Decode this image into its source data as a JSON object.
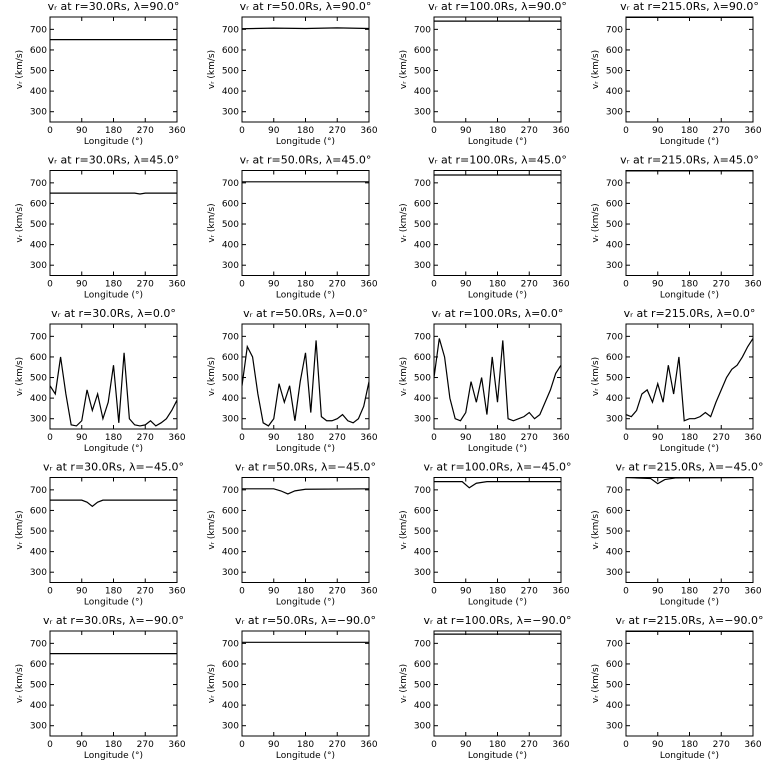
{
  "chart_data": [
    {
      "type": "line",
      "title": "vᵣ at r=30.0Rs, λ=90.0°",
      "xlabel": "Longitude (°)",
      "ylabel": "vᵣ (km/s)",
      "x": [
        0,
        360
      ],
      "values": [
        650,
        650
      ],
      "xlim": [
        0,
        360
      ],
      "ylim": [
        250,
        760
      ],
      "xticks": [
        0,
        90,
        180,
        270,
        360
      ],
      "yticks": [
        300,
        400,
        500,
        600,
        700
      ],
      "color": "#000000"
    },
    {
      "type": "line",
      "title": "vᵣ at r=50.0Rs, λ=90.0°",
      "xlabel": "Longitude (°)",
      "ylabel": "vᵣ (km/s)",
      "x": [
        0,
        90,
        180,
        270,
        360
      ],
      "values": [
        703,
        706,
        704,
        707,
        704
      ],
      "xlim": [
        0,
        360
      ],
      "ylim": [
        250,
        760
      ],
      "xticks": [
        0,
        90,
        180,
        270,
        360
      ],
      "yticks": [
        300,
        400,
        500,
        600,
        700
      ],
      "color": "#000000"
    },
    {
      "type": "line",
      "title": "vᵣ at r=100.0Rs, λ=90.0°",
      "xlabel": "Longitude (°)",
      "ylabel": "vᵣ (km/s)",
      "x": [
        0,
        360
      ],
      "values": [
        740,
        740
      ],
      "xlim": [
        0,
        360
      ],
      "ylim": [
        250,
        760
      ],
      "xticks": [
        0,
        90,
        180,
        270,
        360
      ],
      "yticks": [
        300,
        400,
        500,
        600,
        700
      ],
      "color": "#000000"
    },
    {
      "type": "line",
      "title": "vᵣ at r=215.0Rs, λ=90.0°",
      "xlabel": "Longitude (°)",
      "ylabel": "vᵣ (km/s)",
      "x": [
        0,
        360
      ],
      "values": [
        758,
        758
      ],
      "xlim": [
        0,
        360
      ],
      "ylim": [
        250,
        760
      ],
      "xticks": [
        0,
        90,
        180,
        270,
        360
      ],
      "yticks": [
        300,
        400,
        500,
        600,
        700
      ],
      "color": "#000000"
    },
    {
      "type": "line",
      "title": "vᵣ at r=30.0Rs, λ=45.0°",
      "xlabel": "Longitude (°)",
      "ylabel": "vᵣ (km/s)",
      "x": [
        0,
        240,
        255,
        270,
        360
      ],
      "values": [
        650,
        650,
        646,
        650,
        650
      ],
      "xlim": [
        0,
        360
      ],
      "ylim": [
        250,
        760
      ],
      "xticks": [
        0,
        90,
        180,
        270,
        360
      ],
      "yticks": [
        300,
        400,
        500,
        600,
        700
      ],
      "color": "#000000"
    },
    {
      "type": "line",
      "title": "vᵣ at r=50.0Rs, λ=45.0°",
      "xlabel": "Longitude (°)",
      "ylabel": "vᵣ (km/s)",
      "x": [
        0,
        360
      ],
      "values": [
        705,
        705
      ],
      "xlim": [
        0,
        360
      ],
      "ylim": [
        250,
        760
      ],
      "xticks": [
        0,
        90,
        180,
        270,
        360
      ],
      "yticks": [
        300,
        400,
        500,
        600,
        700
      ],
      "color": "#000000"
    },
    {
      "type": "line",
      "title": "vᵣ at r=100.0Rs, λ=45.0°",
      "xlabel": "Longitude (°)",
      "ylabel": "vᵣ (km/s)",
      "x": [
        0,
        360
      ],
      "values": [
        738,
        738
      ],
      "xlim": [
        0,
        360
      ],
      "ylim": [
        250,
        760
      ],
      "xticks": [
        0,
        90,
        180,
        270,
        360
      ],
      "yticks": [
        300,
        400,
        500,
        600,
        700
      ],
      "color": "#000000"
    },
    {
      "type": "line",
      "title": "vᵣ at r=215.0Rs, λ=45.0°",
      "xlabel": "Longitude (°)",
      "ylabel": "vᵣ (km/s)",
      "x": [
        0,
        360
      ],
      "values": [
        758,
        758
      ],
      "xlim": [
        0,
        360
      ],
      "ylim": [
        250,
        760
      ],
      "xticks": [
        0,
        90,
        180,
        270,
        360
      ],
      "yticks": [
        300,
        400,
        500,
        600,
        700
      ],
      "color": "#000000"
    },
    {
      "type": "line",
      "title": "vᵣ at r=30.0Rs, λ=0.0°",
      "xlabel": "Longitude (°)",
      "ylabel": "vᵣ (km/s)",
      "x": [
        0,
        15,
        30,
        45,
        60,
        75,
        90,
        105,
        120,
        135,
        150,
        165,
        180,
        195,
        210,
        225,
        240,
        255,
        270,
        285,
        300,
        315,
        330,
        345,
        360
      ],
      "values": [
        460,
        420,
        600,
        420,
        270,
        265,
        290,
        440,
        340,
        420,
        300,
        380,
        560,
        280,
        620,
        300,
        270,
        265,
        270,
        290,
        265,
        280,
        300,
        340,
        390
      ],
      "xlim": [
        0,
        360
      ],
      "ylim": [
        250,
        760
      ],
      "xticks": [
        0,
        90,
        180,
        270,
        360
      ],
      "yticks": [
        300,
        400,
        500,
        600,
        700
      ],
      "color": "#000000"
    },
    {
      "type": "line",
      "title": "vᵣ at r=50.0Rs, λ=0.0°",
      "xlabel": "Longitude (°)",
      "ylabel": "vᵣ (km/s)",
      "x": [
        0,
        15,
        30,
        45,
        60,
        75,
        90,
        105,
        120,
        135,
        150,
        165,
        180,
        195,
        210,
        225,
        240,
        255,
        270,
        285,
        300,
        315,
        330,
        345,
        360
      ],
      "values": [
        460,
        650,
        600,
        420,
        280,
        265,
        300,
        470,
        380,
        460,
        290,
        480,
        620,
        330,
        680,
        310,
        290,
        290,
        300,
        320,
        290,
        280,
        300,
        360,
        480
      ],
      "xlim": [
        0,
        360
      ],
      "ylim": [
        250,
        760
      ],
      "xticks": [
        0,
        90,
        180,
        270,
        360
      ],
      "yticks": [
        300,
        400,
        500,
        600,
        700
      ],
      "color": "#000000"
    },
    {
      "type": "line",
      "title": "vᵣ at r=100.0Rs, λ=0.0°",
      "xlabel": "Longitude (°)",
      "ylabel": "vᵣ (km/s)",
      "x": [
        0,
        15,
        30,
        45,
        60,
        75,
        90,
        105,
        120,
        135,
        150,
        165,
        180,
        195,
        210,
        225,
        240,
        255,
        270,
        285,
        300,
        315,
        330,
        345,
        360
      ],
      "values": [
        500,
        690,
        600,
        400,
        300,
        290,
        330,
        480,
        380,
        500,
        320,
        600,
        380,
        680,
        300,
        290,
        300,
        310,
        330,
        300,
        320,
        380,
        440,
        520,
        560
      ],
      "xlim": [
        0,
        360
      ],
      "ylim": [
        250,
        760
      ],
      "xticks": [
        0,
        90,
        180,
        270,
        360
      ],
      "yticks": [
        300,
        400,
        500,
        600,
        700
      ],
      "color": "#000000"
    },
    {
      "type": "line",
      "title": "vᵣ at r=215.0Rs, λ=0.0°",
      "xlabel": "Longitude (°)",
      "ylabel": "vᵣ (km/s)",
      "x": [
        0,
        15,
        30,
        45,
        60,
        75,
        90,
        105,
        120,
        135,
        150,
        165,
        180,
        195,
        210,
        225,
        240,
        255,
        270,
        285,
        300,
        315,
        330,
        345,
        360
      ],
      "values": [
        320,
        310,
        340,
        420,
        440,
        380,
        470,
        380,
        560,
        420,
        600,
        290,
        300,
        300,
        310,
        330,
        310,
        380,
        440,
        500,
        540,
        560,
        600,
        650,
        690
      ],
      "xlim": [
        0,
        360
      ],
      "ylim": [
        250,
        760
      ],
      "xticks": [
        0,
        90,
        180,
        270,
        360
      ],
      "yticks": [
        300,
        400,
        500,
        600,
        700
      ],
      "color": "#000000"
    },
    {
      "type": "line",
      "title": "vᵣ at r=30.0Rs, λ=−45.0°",
      "xlabel": "Longitude (°)",
      "ylabel": "vᵣ (km/s)",
      "x": [
        0,
        90,
        105,
        120,
        135,
        150,
        360
      ],
      "values": [
        650,
        650,
        640,
        620,
        640,
        650,
        650
      ],
      "xlim": [
        0,
        360
      ],
      "ylim": [
        250,
        760
      ],
      "xticks": [
        0,
        90,
        180,
        270,
        360
      ],
      "yticks": [
        300,
        400,
        500,
        600,
        700
      ],
      "color": "#000000"
    },
    {
      "type": "line",
      "title": "vᵣ at r=50.0Rs, λ=−45.0°",
      "xlabel": "Longitude (°)",
      "ylabel": "vᵣ (km/s)",
      "x": [
        0,
        90,
        110,
        130,
        150,
        180,
        360
      ],
      "values": [
        705,
        705,
        695,
        680,
        695,
        703,
        705
      ],
      "xlim": [
        0,
        360
      ],
      "ylim": [
        250,
        760
      ],
      "xticks": [
        0,
        90,
        180,
        270,
        360
      ],
      "yticks": [
        300,
        400,
        500,
        600,
        700
      ],
      "color": "#000000"
    },
    {
      "type": "line",
      "title": "vᵣ at r=100.0Rs, λ=−45.0°",
      "xlabel": "Longitude (°)",
      "ylabel": "vᵣ (km/s)",
      "x": [
        0,
        80,
        100,
        120,
        150,
        360
      ],
      "values": [
        740,
        740,
        710,
        732,
        740,
        740
      ],
      "xlim": [
        0,
        360
      ],
      "ylim": [
        250,
        760
      ],
      "xticks": [
        0,
        90,
        180,
        270,
        360
      ],
      "yticks": [
        300,
        400,
        500,
        600,
        700
      ],
      "color": "#000000"
    },
    {
      "type": "line",
      "title": "vᵣ at r=215.0Rs, λ=−45.0°",
      "xlabel": "Longitude (°)",
      "ylabel": "vᵣ (km/s)",
      "x": [
        0,
        70,
        90,
        110,
        140,
        360
      ],
      "values": [
        760,
        755,
        730,
        750,
        758,
        760
      ],
      "xlim": [
        0,
        360
      ],
      "ylim": [
        250,
        760
      ],
      "xticks": [
        0,
        90,
        180,
        270,
        360
      ],
      "yticks": [
        300,
        400,
        500,
        600,
        700
      ],
      "color": "#000000"
    },
    {
      "type": "line",
      "title": "vᵣ at r=30.0Rs, λ=−90.0°",
      "xlabel": "Longitude (°)",
      "ylabel": "vᵣ (km/s)",
      "x": [
        0,
        360
      ],
      "values": [
        650,
        650
      ],
      "xlim": [
        0,
        360
      ],
      "ylim": [
        250,
        760
      ],
      "xticks": [
        0,
        90,
        180,
        270,
        360
      ],
      "yticks": [
        300,
        400,
        500,
        600,
        700
      ],
      "color": "#000000"
    },
    {
      "type": "line",
      "title": "vᵣ at r=50.0Rs, λ=−90.0°",
      "xlabel": "Longitude (°)",
      "ylabel": "vᵣ (km/s)",
      "x": [
        0,
        360
      ],
      "values": [
        705,
        705
      ],
      "xlim": [
        0,
        360
      ],
      "ylim": [
        250,
        760
      ],
      "xticks": [
        0,
        90,
        180,
        270,
        360
      ],
      "yticks": [
        300,
        400,
        500,
        600,
        700
      ],
      "color": "#000000"
    },
    {
      "type": "line",
      "title": "vᵣ at r=100.0Rs, λ=−90.0°",
      "xlabel": "Longitude (°)",
      "ylabel": "vᵣ (km/s)",
      "x": [
        0,
        360
      ],
      "values": [
        745,
        745
      ],
      "xlim": [
        0,
        360
      ],
      "ylim": [
        250,
        760
      ],
      "xticks": [
        0,
        90,
        180,
        270,
        360
      ],
      "yticks": [
        300,
        400,
        500,
        600,
        700
      ],
      "color": "#000000"
    },
    {
      "type": "line",
      "title": "vᵣ at r=215.0Rs, λ=−90.0°",
      "xlabel": "Longitude (°)",
      "ylabel": "vᵣ (km/s)",
      "x": [
        0,
        360
      ],
      "values": [
        758,
        758
      ],
      "xlim": [
        0,
        360
      ],
      "ylim": [
        250,
        760
      ],
      "xticks": [
        0,
        90,
        180,
        270,
        360
      ],
      "yticks": [
        300,
        400,
        500,
        600,
        700
      ],
      "color": "#000000"
    }
  ]
}
